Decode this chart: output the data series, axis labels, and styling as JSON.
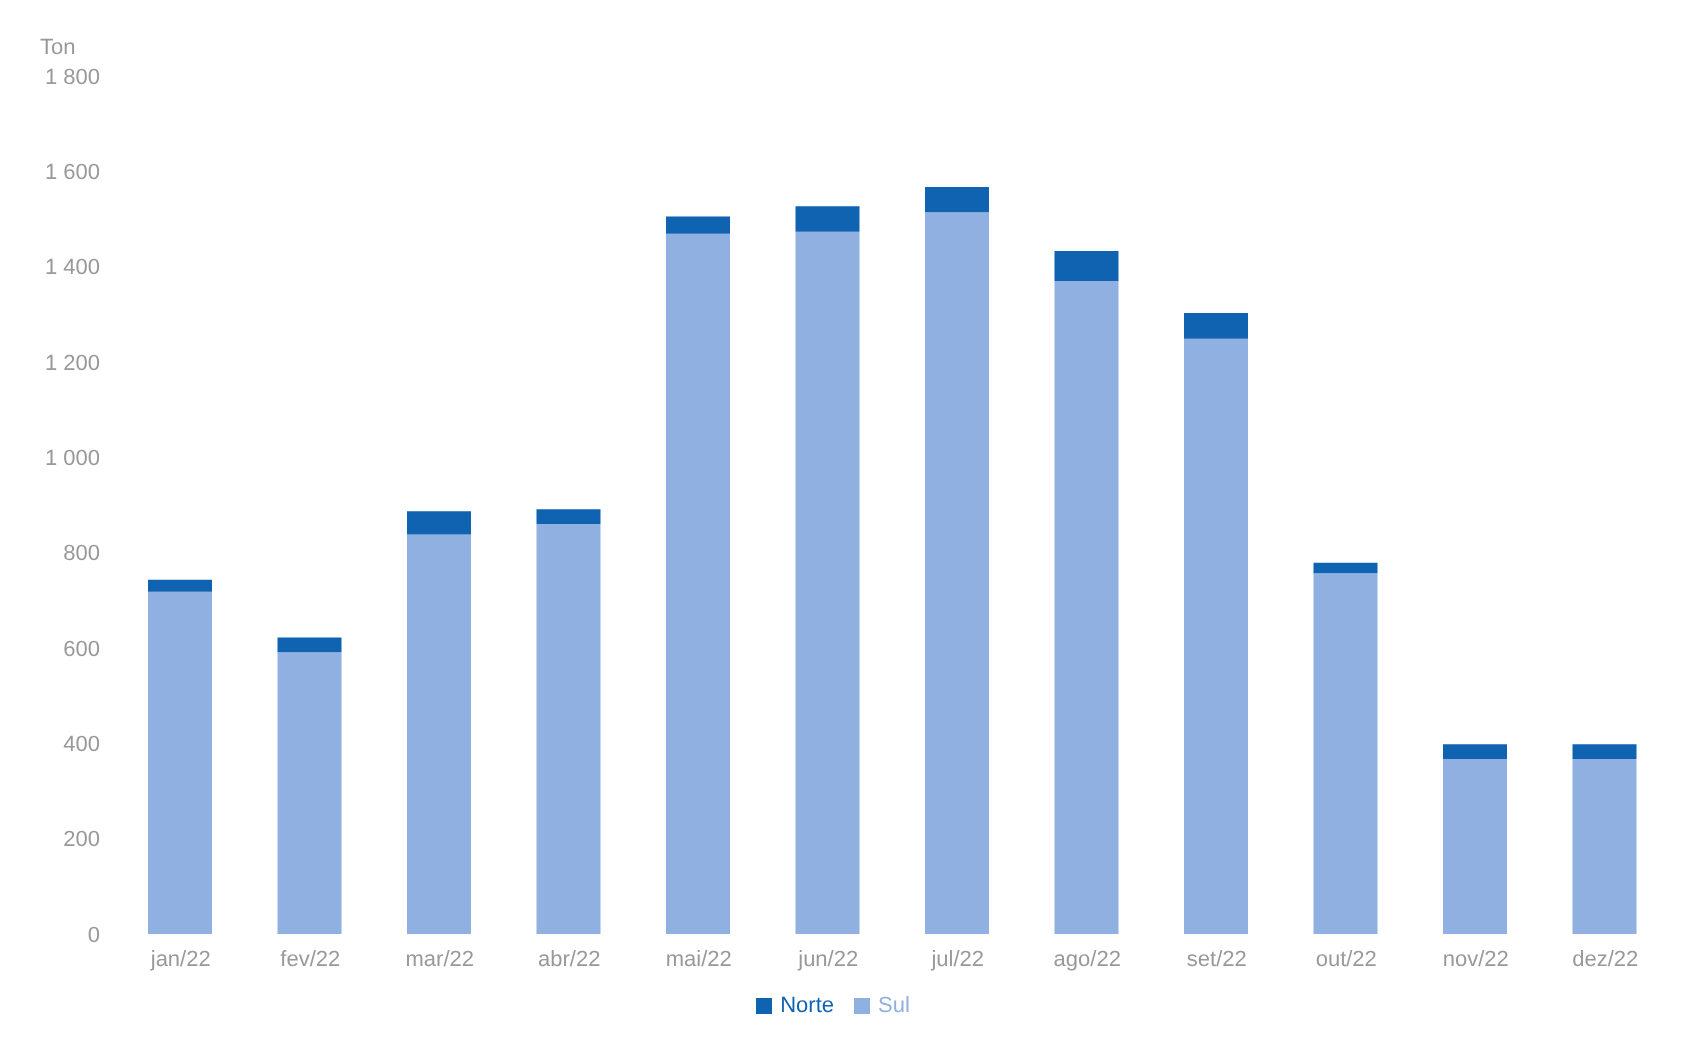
{
  "chart_data": {
    "type": "bar",
    "stacked": true,
    "ylabel": "Ton",
    "categories": [
      "jan/22",
      "fev/22",
      "mar/22",
      "abr/22",
      "mai/22",
      "jun/22",
      "jul/22",
      "ago/22",
      "set/22",
      "out/22",
      "nov/22",
      "dez/22"
    ],
    "series": [
      {
        "name": "Sul",
        "color": "#8fb0e0",
        "values": [
          718,
          591,
          838,
          860,
          1469,
          1473,
          1514,
          1370,
          1249,
          757,
          367,
          367
        ]
      },
      {
        "name": "Norte",
        "color": "#0f63b0",
        "values": [
          25,
          31,
          49,
          31,
          36,
          54,
          53,
          63,
          54,
          22,
          31,
          31
        ]
      }
    ],
    "ylim": [
      0,
      1800
    ],
    "yticks": [
      {
        "value": 0,
        "label": "0"
      },
      {
        "value": 200,
        "label": "200"
      },
      {
        "value": 400,
        "label": "400"
      },
      {
        "value": 600,
        "label": "600"
      },
      {
        "value": 800,
        "label": "800"
      },
      {
        "value": 1000,
        "label": "1 000"
      },
      {
        "value": 1200,
        "label": "1 200"
      },
      {
        "value": 1400,
        "label": "1 400"
      },
      {
        "value": 1600,
        "label": "1 600"
      },
      {
        "value": 1800,
        "label": "1 800"
      }
    ],
    "grid": false,
    "legend": "bottom"
  }
}
